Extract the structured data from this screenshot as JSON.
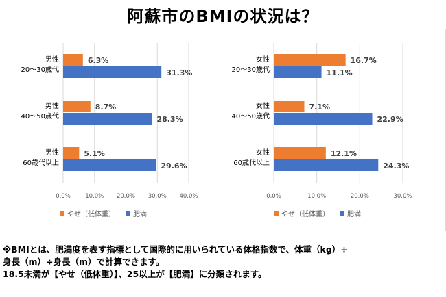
{
  "title": "阿蘇市のBMIの状況は？",
  "colors": {
    "underweight": "#ED7D31",
    "obese": "#4472C4",
    "grid": "#d9d9d9"
  },
  "chart_data": [
    {
      "type": "bar",
      "orientation": "horizontal",
      "categories": [
        [
          "男性",
          "20～30歳代"
        ],
        [
          "男性",
          "40～50歳代"
        ],
        [
          "男性",
          "60歳代以上"
        ]
      ],
      "series": [
        {
          "name": "やせ（低体重）",
          "values": [
            6.3,
            8.7,
            5.1
          ],
          "labels": [
            "6.3%",
            "8.7%",
            "5.1%"
          ]
        },
        {
          "name": "肥満",
          "values": [
            31.3,
            28.3,
            29.6
          ],
          "labels": [
            "31.3%",
            "28.3%",
            "29.6%"
          ]
        }
      ],
      "xlim": [
        0,
        40
      ],
      "xticks": [
        "0.0%",
        "10.0%",
        "20.0%",
        "30.0%",
        "40.0%"
      ],
      "grid": true,
      "legend": "bottom"
    },
    {
      "type": "bar",
      "orientation": "horizontal",
      "categories": [
        [
          "女性",
          "20～30歳代"
        ],
        [
          "女性",
          "40～50歳代"
        ],
        [
          "女性",
          "60歳代以上"
        ]
      ],
      "series": [
        {
          "name": "やせ（低体重）",
          "values": [
            16.7,
            7.1,
            12.1
          ],
          "labels": [
            "16.7%",
            "7.1%",
            "12.1%"
          ]
        },
        {
          "name": "肥満",
          "values": [
            11.1,
            22.9,
            24.3
          ],
          "labels": [
            "11.1%",
            "22.9%",
            "24.3%"
          ]
        }
      ],
      "xlim": [
        0,
        30
      ],
      "xticks": [
        "0.0%",
        "10.0%",
        "20.0%",
        "30.0%"
      ],
      "grid": true,
      "legend": "bottom"
    }
  ],
  "note": {
    "line1": "※BMIとは、肥満度を表す指標として国際的に用いられている体格指数で、体重（kg）÷",
    "line2": "身長（m）÷身長（m）で計算できます。",
    "line3": "18.5未満が【やせ（低体重）】、25以上が【肥満】に分類されます。"
  }
}
